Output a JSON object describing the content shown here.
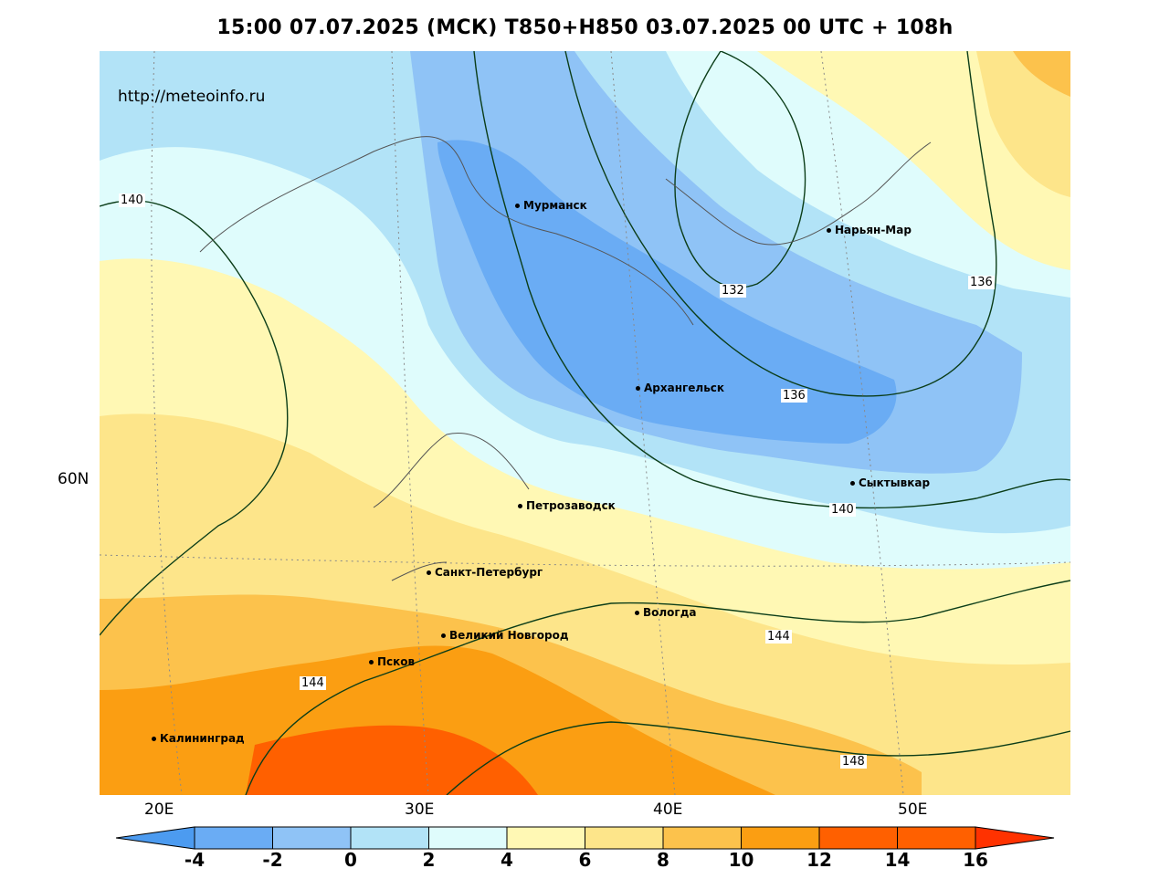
{
  "title": "15:00 07.07.2025 (МСК) T850+H850 03.07.2025 00 UTC + 108h",
  "watermark": "http://meteoinfo.ru",
  "cities": [
    {
      "name": "Мурманск"
    },
    {
      "name": "Нарьян-Мар"
    },
    {
      "name": "Архангельск"
    },
    {
      "name": "Сыктывкар"
    },
    {
      "name": "Петрозаводск"
    },
    {
      "name": "Санкт-Петербург"
    },
    {
      "name": "Вологда"
    },
    {
      "name": "Великий Новгород"
    },
    {
      "name": "Псков"
    },
    {
      "name": "Калининград"
    }
  ],
  "contour_labels": [
    "140",
    "132",
    "136",
    "136",
    "140",
    "144",
    "144",
    "148"
  ],
  "lon_labels": [
    "20E",
    "30E",
    "40E",
    "50E"
  ],
  "lat_labels": [
    "60N"
  ],
  "colorbar": {
    "ticks": [
      "-4",
      "-2",
      "0",
      "2",
      "4",
      "6",
      "8",
      "10",
      "12",
      "14",
      "16"
    ],
    "colors": [
      "#4c9bf0",
      "#6aacf4",
      "#8fc3f6",
      "#b2e3f7",
      "#dffcfc",
      "#fff8b4",
      "#fde58a",
      "#fcc24c",
      "#fb9e12",
      "#ff6000",
      "#ff3200"
    ]
  }
}
